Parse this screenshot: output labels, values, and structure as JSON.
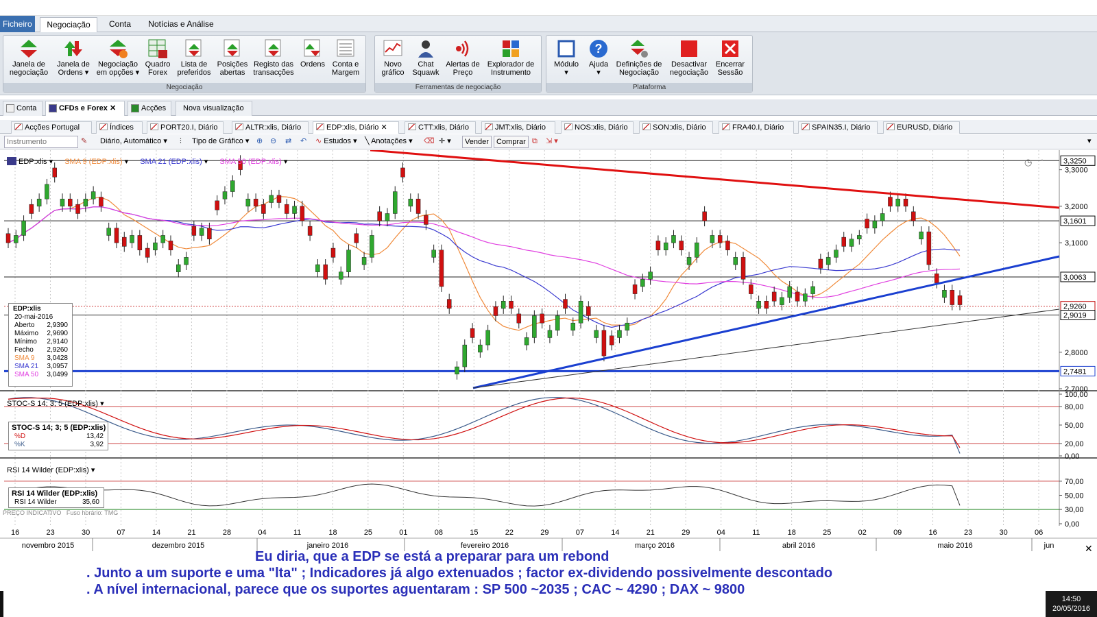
{
  "menu": {
    "file": "Ficheiro",
    "tabs": [
      "Negociação",
      "Conta",
      "Notícias e Análise"
    ]
  },
  "ribbon": {
    "groups": [
      {
        "title": "Negociação",
        "buttons": [
          {
            "label1": "Janela de",
            "label2": "negociação"
          },
          {
            "label1": "Janela de",
            "label2": "Ordens ▾"
          },
          {
            "label1": "Negociação",
            "label2": "em opções ▾"
          },
          {
            "label1": "Quadro",
            "label2": "Forex"
          },
          {
            "label1": "Lista de",
            "label2": "preferidos"
          },
          {
            "label1": "Posições",
            "label2": "abertas"
          },
          {
            "label1": "Registo das",
            "label2": "transacções"
          },
          {
            "label1": "Ordens",
            "label2": ""
          },
          {
            "label1": "Conta e",
            "label2": "Margem"
          }
        ]
      },
      {
        "title": "Ferramentas de negociação",
        "buttons": [
          {
            "label1": "Novo",
            "label2": "gráfico"
          },
          {
            "label1": "Chat",
            "label2": "Squawk"
          },
          {
            "label1": "Alertas de",
            "label2": "Preço"
          },
          {
            "label1": "Explorador de",
            "label2": "Instrumento"
          }
        ]
      },
      {
        "title": "Plataforma",
        "buttons": [
          {
            "label1": "Módulo",
            "label2": "▾"
          },
          {
            "label1": "Ajuda",
            "label2": "▾"
          },
          {
            "label1": "Definições de",
            "label2": "Negociação"
          },
          {
            "label1": "Desactivar",
            "label2": "negociação"
          },
          {
            "label1": "Encerrar",
            "label2": "Sessão"
          }
        ]
      }
    ]
  },
  "workspace_tabs": [
    "Conta",
    "CFDs e Forex",
    "Acções",
    "Nova visualização"
  ],
  "chart_tabs": [
    "Acções Portugal",
    "Índices",
    "PORT20.I, Diário",
    "ALTR:xlis, Diário",
    "EDP:xlis, Diário",
    "CTT:xlis, Diário",
    "JMT:xlis, Diário",
    "NOS:xlis, Diário",
    "SON:xlis, Diário",
    "FRA40.I, Diário",
    "SPAIN35.I, Diário",
    "EURUSD, Diário"
  ],
  "toolbar": {
    "instrument_placeholder": "Instrumento",
    "period": "Diário,  Automático",
    "chart_type": "Tipo de Gráfico",
    "studies": "Estudos",
    "annotations": "Anotações",
    "sell": "Vender",
    "buy": "Comprar"
  },
  "chart_data": {
    "type": "candlestick",
    "instrument": "EDP:xlis",
    "legend": [
      "EDP:xlis",
      "SMA 9 (EDP:xlis)",
      "SMA 21 (EDP:xlis)",
      "SMA 50 (EDP:xlis)"
    ],
    "ylim": [
      2.7,
      3.35
    ],
    "y_ticks": [
      "3,3000",
      "3,2000",
      "3,1000",
      "2,8000",
      "2,7000"
    ],
    "price_tags": [
      {
        "value": "3,3250",
        "color": "#000000"
      },
      {
        "value": "3,1601",
        "color": "#000000"
      },
      {
        "value": "3,0063",
        "color": "#000000"
      },
      {
        "value": "2,9260",
        "color": "#c00000"
      },
      {
        "value": "2,9019",
        "color": "#000000"
      },
      {
        "value": "2,7481",
        "color": "#1a3fd0"
      }
    ],
    "x_day_labels": [
      "16",
      "23",
      "30",
      "07",
      "14",
      "21",
      "28",
      "04",
      "11",
      "18",
      "25",
      "01",
      "08",
      "15",
      "22",
      "29",
      "07",
      "14",
      "21",
      "29",
      "04",
      "11",
      "18",
      "25",
      "02",
      "09",
      "16",
      "23",
      "30",
      "06"
    ],
    "x_month_labels": [
      "novembro 2015",
      "dezembro 2015",
      "janeiro 2016",
      "fevereiro 2016",
      "março 2016",
      "abril 2016",
      "maio 2016",
      "jun"
    ],
    "info_box": {
      "title": "EDP:xlis",
      "date": "20-mai-2016",
      "rows": [
        {
          "k": "Aberto",
          "v": "2,9390"
        },
        {
          "k": "Máximo",
          "v": "2,9690"
        },
        {
          "k": "Mínimo",
          "v": "2,9140"
        },
        {
          "k": "Fecho",
          "v": "2,9260"
        },
        {
          "k": "SMA 9",
          "v": "3,0428"
        },
        {
          "k": "SMA 21",
          "v": "3,0957"
        },
        {
          "k": "SMA 50",
          "v": "3,0499"
        }
      ]
    },
    "stoch": {
      "title": "STOC-S 14; 3; 5 (EDP:xlis)",
      "box_title": "STOC-S 14; 3; 5 (EDP:xlis)",
      "d_label": "%D",
      "d_value": "13,42",
      "k_label": "%K",
      "k_value": "3,92",
      "ticks": [
        "100,00",
        "80,00",
        "50,00",
        "20,00",
        "0,00"
      ]
    },
    "rsi": {
      "title": "RSI 14 Wilder (EDP:xlis)",
      "box_title": "RSI 14 Wilder (EDP:xlis)",
      "label": "RSI 14 Wilder",
      "value": "35,60",
      "ticks": [
        "70,00",
        "50,00",
        "30,00",
        "0,00"
      ]
    },
    "footnote1": "PREÇO INDICATIVO",
    "footnote2": "Fuso horário: TMG"
  },
  "annotation": {
    "line1": "Eu diria, que a EDP se está a preparar para um rebond",
    "line2": ". Junto a um suporte e uma \"lta\" ;  Indicadores já algo extenuados ; factor ex-dividendo possivelmente descontado",
    "line3": ". A nível internacional, parece que os suportes aguentaram : SP 500 ~2035 ; CAC ~ 4290  ; DAX ~ 9800"
  },
  "clock": {
    "time": "14:50",
    "date": "20/05/2016"
  },
  "colors": {
    "up": "#2fa82f",
    "down": "#d01010",
    "sma9": "#f08a3a",
    "sma21": "#3a3ad0",
    "sma50": "#e040e0",
    "resistance": "#e01010",
    "support": "#1a3fd0",
    "annotation": "#2a2fb8"
  }
}
